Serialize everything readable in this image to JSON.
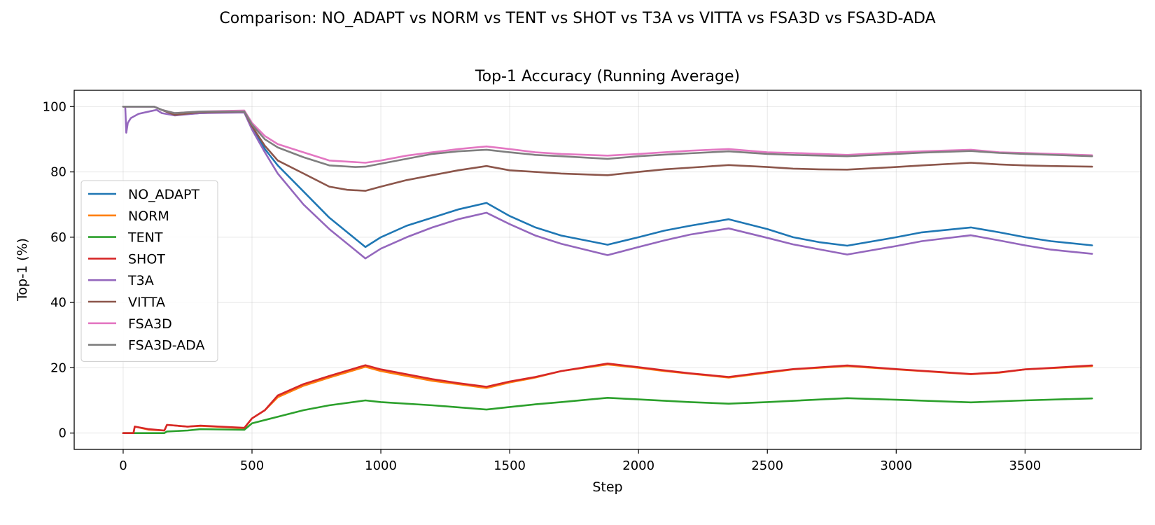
{
  "figure": {
    "suptitle": "Comparison: NO_ADAPT vs NORM vs TENT vs SHOT vs T3A vs VITTA vs FSA3D vs FSA3D-ADA"
  },
  "chart_data": {
    "type": "line",
    "title": "Top-1 Accuracy (Running Average)",
    "xlabel": "Step",
    "ylabel": "Top-1 (%)",
    "xlim": [
      -190,
      3950
    ],
    "ylim": [
      -5,
      105
    ],
    "xticks": [
      0,
      500,
      1000,
      1500,
      2000,
      2500,
      3000,
      3500
    ],
    "yticks": [
      0,
      20,
      40,
      60,
      80,
      100
    ],
    "grid": true,
    "legend_position": "center-left",
    "series": [
      {
        "name": "NO_ADAPT",
        "color": "#1f77b4",
        "points": [
          [
            0,
            100
          ],
          [
            120,
            100
          ],
          [
            150,
            99
          ],
          [
            200,
            97.5
          ],
          [
            300,
            98
          ],
          [
            470,
            98.5
          ],
          [
            500,
            94
          ],
          [
            550,
            87
          ],
          [
            600,
            82
          ],
          [
            700,
            74
          ],
          [
            800,
            66
          ],
          [
            940,
            57
          ],
          [
            1000,
            60
          ],
          [
            1100,
            63.5
          ],
          [
            1200,
            66
          ],
          [
            1300,
            68.5
          ],
          [
            1410,
            70.5
          ],
          [
            1500,
            66.5
          ],
          [
            1600,
            63
          ],
          [
            1700,
            60.5
          ],
          [
            1880,
            57.7
          ],
          [
            2000,
            60
          ],
          [
            2100,
            62
          ],
          [
            2200,
            63.5
          ],
          [
            2350,
            65.5
          ],
          [
            2500,
            62.5
          ],
          [
            2600,
            60
          ],
          [
            2700,
            58.5
          ],
          [
            2810,
            57.4
          ],
          [
            3000,
            60
          ],
          [
            3100,
            61.5
          ],
          [
            3290,
            63
          ],
          [
            3400,
            61.5
          ],
          [
            3500,
            60
          ],
          [
            3600,
            58.8
          ],
          [
            3760,
            57.5
          ]
        ]
      },
      {
        "name": "NORM",
        "color": "#ff7f0e",
        "points": [
          [
            0,
            0
          ],
          [
            40,
            0
          ],
          [
            45,
            2
          ],
          [
            100,
            1
          ],
          [
            160,
            0.8
          ],
          [
            170,
            2.5
          ],
          [
            250,
            2
          ],
          [
            300,
            2.2
          ],
          [
            470,
            1.5
          ],
          [
            500,
            4.5
          ],
          [
            550,
            7
          ],
          [
            600,
            11
          ],
          [
            700,
            14.5
          ],
          [
            800,
            17
          ],
          [
            940,
            20.3
          ],
          [
            1000,
            19
          ],
          [
            1100,
            17.5
          ],
          [
            1200,
            16
          ],
          [
            1300,
            15
          ],
          [
            1410,
            13.8
          ],
          [
            1500,
            15.5
          ],
          [
            1600,
            17
          ],
          [
            1700,
            19
          ],
          [
            1880,
            21
          ],
          [
            2000,
            20
          ],
          [
            2100,
            19
          ],
          [
            2200,
            18.2
          ],
          [
            2350,
            17
          ],
          [
            2500,
            18.5
          ],
          [
            2600,
            19.5
          ],
          [
            2810,
            20.5
          ],
          [
            3000,
            19.5
          ],
          [
            3290,
            18
          ],
          [
            3400,
            18.5
          ],
          [
            3500,
            19.5
          ],
          [
            3760,
            20.5
          ]
        ]
      },
      {
        "name": "TENT",
        "color": "#2ca02c",
        "points": [
          [
            0,
            0
          ],
          [
            160,
            0
          ],
          [
            170,
            0.5
          ],
          [
            250,
            0.8
          ],
          [
            300,
            1.2
          ],
          [
            470,
            1
          ],
          [
            500,
            3
          ],
          [
            600,
            5
          ],
          [
            700,
            7
          ],
          [
            800,
            8.5
          ],
          [
            940,
            10
          ],
          [
            1000,
            9.5
          ],
          [
            1200,
            8.5
          ],
          [
            1410,
            7.2
          ],
          [
            1500,
            8
          ],
          [
            1600,
            8.8
          ],
          [
            1700,
            9.5
          ],
          [
            1880,
            10.8
          ],
          [
            2000,
            10.3
          ],
          [
            2200,
            9.5
          ],
          [
            2350,
            9
          ],
          [
            2500,
            9.5
          ],
          [
            2810,
            10.7
          ],
          [
            3000,
            10.2
          ],
          [
            3290,
            9.4
          ],
          [
            3500,
            10
          ],
          [
            3760,
            10.6
          ]
        ]
      },
      {
        "name": "SHOT",
        "color": "#d62728",
        "points": [
          [
            0,
            0
          ],
          [
            40,
            0
          ],
          [
            45,
            2
          ],
          [
            100,
            1.2
          ],
          [
            160,
            0.8
          ],
          [
            170,
            2.5
          ],
          [
            250,
            2
          ],
          [
            300,
            2.3
          ],
          [
            470,
            1.6
          ],
          [
            500,
            4.5
          ],
          [
            550,
            7
          ],
          [
            600,
            11.5
          ],
          [
            700,
            15
          ],
          [
            800,
            17.5
          ],
          [
            940,
            20.8
          ],
          [
            1000,
            19.5
          ],
          [
            1100,
            18
          ],
          [
            1200,
            16.5
          ],
          [
            1300,
            15.3
          ],
          [
            1410,
            14.2
          ],
          [
            1500,
            15.8
          ],
          [
            1600,
            17.2
          ],
          [
            1700,
            19
          ],
          [
            1880,
            21.3
          ],
          [
            2000,
            20.2
          ],
          [
            2100,
            19.2
          ],
          [
            2200,
            18.3
          ],
          [
            2350,
            17.2
          ],
          [
            2500,
            18.7
          ],
          [
            2600,
            19.6
          ],
          [
            2810,
            20.7
          ],
          [
            3000,
            19.6
          ],
          [
            3290,
            18.1
          ],
          [
            3400,
            18.6
          ],
          [
            3500,
            19.5
          ],
          [
            3760,
            20.7
          ]
        ]
      },
      {
        "name": "T3A",
        "color": "#9467bd",
        "points": [
          [
            0,
            100
          ],
          [
            8,
            100
          ],
          [
            12,
            92
          ],
          [
            18,
            95
          ],
          [
            30,
            96.5
          ],
          [
            60,
            97.8
          ],
          [
            100,
            98.5
          ],
          [
            130,
            99
          ],
          [
            150,
            98
          ],
          [
            200,
            97.3
          ],
          [
            300,
            98
          ],
          [
            470,
            98.2
          ],
          [
            500,
            93
          ],
          [
            550,
            86
          ],
          [
            600,
            79.5
          ],
          [
            700,
            70
          ],
          [
            800,
            62.5
          ],
          [
            940,
            53.5
          ],
          [
            1000,
            56.5
          ],
          [
            1100,
            60
          ],
          [
            1200,
            63
          ],
          [
            1300,
            65.5
          ],
          [
            1410,
            67.5
          ],
          [
            1500,
            64
          ],
          [
            1600,
            60.5
          ],
          [
            1700,
            58
          ],
          [
            1880,
            54.5
          ],
          [
            2000,
            57
          ],
          [
            2100,
            59
          ],
          [
            2200,
            60.8
          ],
          [
            2350,
            62.7
          ],
          [
            2500,
            59.8
          ],
          [
            2600,
            57.8
          ],
          [
            2700,
            56.3
          ],
          [
            2810,
            54.7
          ],
          [
            3000,
            57.3
          ],
          [
            3100,
            58.8
          ],
          [
            3290,
            60.6
          ],
          [
            3400,
            59
          ],
          [
            3500,
            57.5
          ],
          [
            3600,
            56.2
          ],
          [
            3760,
            54.9
          ]
        ]
      },
      {
        "name": "VITTA",
        "color": "#8c564b",
        "points": [
          [
            0,
            100
          ],
          [
            120,
            100
          ],
          [
            150,
            99
          ],
          [
            200,
            97.5
          ],
          [
            300,
            98.3
          ],
          [
            470,
            98.5
          ],
          [
            500,
            94
          ],
          [
            550,
            88
          ],
          [
            600,
            83.5
          ],
          [
            700,
            79.5
          ],
          [
            800,
            75.5
          ],
          [
            870,
            74.5
          ],
          [
            940,
            74.2
          ],
          [
            1000,
            75.5
          ],
          [
            1100,
            77.5
          ],
          [
            1200,
            79
          ],
          [
            1300,
            80.5
          ],
          [
            1410,
            81.8
          ],
          [
            1500,
            80.5
          ],
          [
            1600,
            80
          ],
          [
            1700,
            79.5
          ],
          [
            1880,
            79
          ],
          [
            2000,
            80
          ],
          [
            2100,
            80.8
          ],
          [
            2200,
            81.3
          ],
          [
            2350,
            82.1
          ],
          [
            2500,
            81.5
          ],
          [
            2600,
            81
          ],
          [
            2700,
            80.8
          ],
          [
            2810,
            80.7
          ],
          [
            3000,
            81.5
          ],
          [
            3100,
            82
          ],
          [
            3290,
            82.8
          ],
          [
            3400,
            82.3
          ],
          [
            3500,
            82
          ],
          [
            3600,
            81.8
          ],
          [
            3760,
            81.6
          ]
        ]
      },
      {
        "name": "FSA3D",
        "color": "#e377c2",
        "points": [
          [
            0,
            100
          ],
          [
            120,
            100
          ],
          [
            150,
            99
          ],
          [
            200,
            98
          ],
          [
            300,
            98.5
          ],
          [
            470,
            98.8
          ],
          [
            500,
            95
          ],
          [
            550,
            91
          ],
          [
            600,
            88.5
          ],
          [
            700,
            86
          ],
          [
            800,
            83.5
          ],
          [
            940,
            82.8
          ],
          [
            1000,
            83.5
          ],
          [
            1100,
            85
          ],
          [
            1200,
            86
          ],
          [
            1300,
            87
          ],
          [
            1410,
            87.8
          ],
          [
            1500,
            87
          ],
          [
            1600,
            86
          ],
          [
            1700,
            85.5
          ],
          [
            1880,
            85
          ],
          [
            2000,
            85.5
          ],
          [
            2100,
            86
          ],
          [
            2200,
            86.5
          ],
          [
            2350,
            87
          ],
          [
            2500,
            86
          ],
          [
            2600,
            85.8
          ],
          [
            2810,
            85.2
          ],
          [
            3000,
            86
          ],
          [
            3100,
            86.3
          ],
          [
            3290,
            86.8
          ],
          [
            3400,
            86
          ],
          [
            3500,
            85.8
          ],
          [
            3760,
            85.1
          ]
        ]
      },
      {
        "name": "FSA3D-ADA",
        "color": "#7f7f7f",
        "points": [
          [
            0,
            100
          ],
          [
            120,
            100
          ],
          [
            150,
            99
          ],
          [
            200,
            98
          ],
          [
            300,
            98.5
          ],
          [
            470,
            98.5
          ],
          [
            500,
            94.5
          ],
          [
            550,
            90
          ],
          [
            600,
            87.5
          ],
          [
            700,
            84.5
          ],
          [
            800,
            82
          ],
          [
            900,
            81.5
          ],
          [
            940,
            81.6
          ],
          [
            1000,
            82.5
          ],
          [
            1100,
            84
          ],
          [
            1200,
            85.5
          ],
          [
            1300,
            86.3
          ],
          [
            1410,
            86.8
          ],
          [
            1500,
            86
          ],
          [
            1600,
            85.2
          ],
          [
            1700,
            84.8
          ],
          [
            1880,
            84
          ],
          [
            2000,
            84.8
          ],
          [
            2100,
            85.3
          ],
          [
            2200,
            85.7
          ],
          [
            2350,
            86.3
          ],
          [
            2500,
            85.5
          ],
          [
            2600,
            85.2
          ],
          [
            2810,
            84.8
          ],
          [
            3000,
            85.5
          ],
          [
            3100,
            85.9
          ],
          [
            3290,
            86.4
          ],
          [
            3400,
            85.8
          ],
          [
            3500,
            85.5
          ],
          [
            3760,
            84.8
          ]
        ]
      }
    ]
  }
}
